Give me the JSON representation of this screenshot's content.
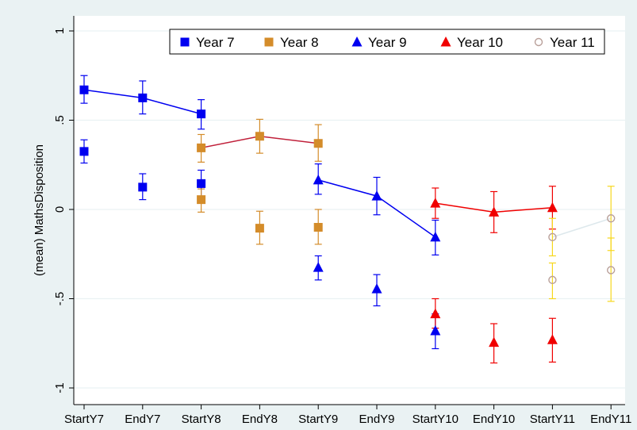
{
  "chart_data": {
    "type": "scatter",
    "title": "",
    "xlabel": "",
    "ylabel": "(mean) MathsDisposition",
    "categories": [
      "StartY7",
      "EndY7",
      "StartY8",
      "EndY8",
      "StartY9",
      "EndY9",
      "StartY10",
      "EndY10",
      "StartY11",
      "EndY11"
    ],
    "ylim": [
      -1.05,
      1.1
    ],
    "yticks": [
      -1,
      -0.5,
      0,
      0.5,
      1
    ],
    "ytick_labels": [
      "-1",
      "-.5",
      "0",
      ".5",
      "1"
    ],
    "grid": true,
    "legend_position": "top-right",
    "series": [
      {
        "name": "Year 7",
        "marker": "square",
        "color": "#0000f0",
        "line_color": "#0000f0",
        "points": [
          {
            "x": "StartY7",
            "y": 0.67,
            "lo": 0.595,
            "hi": 0.75,
            "connected": true
          },
          {
            "x": "EndY7",
            "y": 0.625,
            "lo": 0.535,
            "hi": 0.72,
            "connected": true
          },
          {
            "x": "StartY8",
            "y": 0.535,
            "lo": 0.45,
            "hi": 0.615,
            "connected": true
          },
          {
            "x": "StartY7",
            "y": 0.325,
            "lo": 0.26,
            "hi": 0.39,
            "connected": false
          },
          {
            "x": "EndY7",
            "y": 0.125,
            "lo": 0.055,
            "hi": 0.2,
            "connected": false
          },
          {
            "x": "StartY8",
            "y": 0.145,
            "lo": 0.075,
            "hi": 0.22,
            "connected": false
          }
        ]
      },
      {
        "name": "Year 8",
        "marker": "square",
        "color": "#d48c2a",
        "line_color": "#c0203a",
        "points": [
          {
            "x": "StartY8",
            "y": 0.345,
            "lo": 0.265,
            "hi": 0.42,
            "connected": true
          },
          {
            "x": "EndY8",
            "y": 0.41,
            "lo": 0.315,
            "hi": 0.505,
            "connected": true
          },
          {
            "x": "StartY9",
            "y": 0.37,
            "lo": 0.27,
            "hi": 0.475,
            "connected": true
          },
          {
            "x": "StartY8",
            "y": 0.055,
            "lo": -0.015,
            "hi": 0.115,
            "connected": false
          },
          {
            "x": "EndY8",
            "y": -0.105,
            "lo": -0.195,
            "hi": -0.01,
            "connected": false
          },
          {
            "x": "StartY9",
            "y": -0.1,
            "lo": -0.195,
            "hi": 0.0,
            "connected": false
          }
        ]
      },
      {
        "name": "Year 9",
        "marker": "triangle",
        "color": "#0000f0",
        "line_color": "#0000f0",
        "points": [
          {
            "x": "StartY9",
            "y": 0.165,
            "lo": 0.085,
            "hi": 0.255,
            "connected": true
          },
          {
            "x": "EndY9",
            "y": 0.075,
            "lo": -0.03,
            "hi": 0.18,
            "connected": true
          },
          {
            "x": "StartY10",
            "y": -0.155,
            "lo": -0.255,
            "hi": -0.06,
            "connected": true
          },
          {
            "x": "StartY9",
            "y": -0.325,
            "lo": -0.395,
            "hi": -0.26,
            "connected": false
          },
          {
            "x": "EndY9",
            "y": -0.445,
            "lo": -0.54,
            "hi": -0.365,
            "connected": false
          },
          {
            "x": "StartY10",
            "y": -0.68,
            "lo": -0.78,
            "hi": -0.585,
            "connected": false
          }
        ]
      },
      {
        "name": "Year 10",
        "marker": "triangle",
        "color": "#f00000",
        "line_color": "#f00000",
        "points": [
          {
            "x": "StartY10",
            "y": 0.035,
            "lo": -0.05,
            "hi": 0.12,
            "connected": true
          },
          {
            "x": "EndY10",
            "y": -0.015,
            "lo": -0.13,
            "hi": 0.1,
            "connected": true
          },
          {
            "x": "StartY11",
            "y": 0.01,
            "lo": -0.11,
            "hi": 0.13,
            "connected": true
          },
          {
            "x": "StartY10",
            "y": -0.585,
            "lo": -0.665,
            "hi": -0.5,
            "connected": false
          },
          {
            "x": "EndY10",
            "y": -0.745,
            "lo": -0.86,
            "hi": -0.64,
            "connected": false
          },
          {
            "x": "StartY11",
            "y": -0.73,
            "lo": -0.855,
            "hi": -0.61,
            "connected": false
          }
        ]
      },
      {
        "name": "Year 11",
        "marker": "circle",
        "color": "#b9a09a",
        "line_color": "#dde8ec",
        "err_color": "#f7d71c",
        "points": [
          {
            "x": "StartY11",
            "y": -0.155,
            "lo": -0.26,
            "hi": -0.05,
            "connected": true
          },
          {
            "x": "EndY11",
            "y": -0.05,
            "lo": -0.23,
            "hi": 0.13,
            "connected": true
          },
          {
            "x": "StartY11",
            "y": -0.395,
            "lo": -0.5,
            "hi": -0.3,
            "connected": false
          },
          {
            "x": "EndY11",
            "y": -0.34,
            "lo": -0.515,
            "hi": -0.16,
            "connected": false
          }
        ]
      }
    ]
  }
}
